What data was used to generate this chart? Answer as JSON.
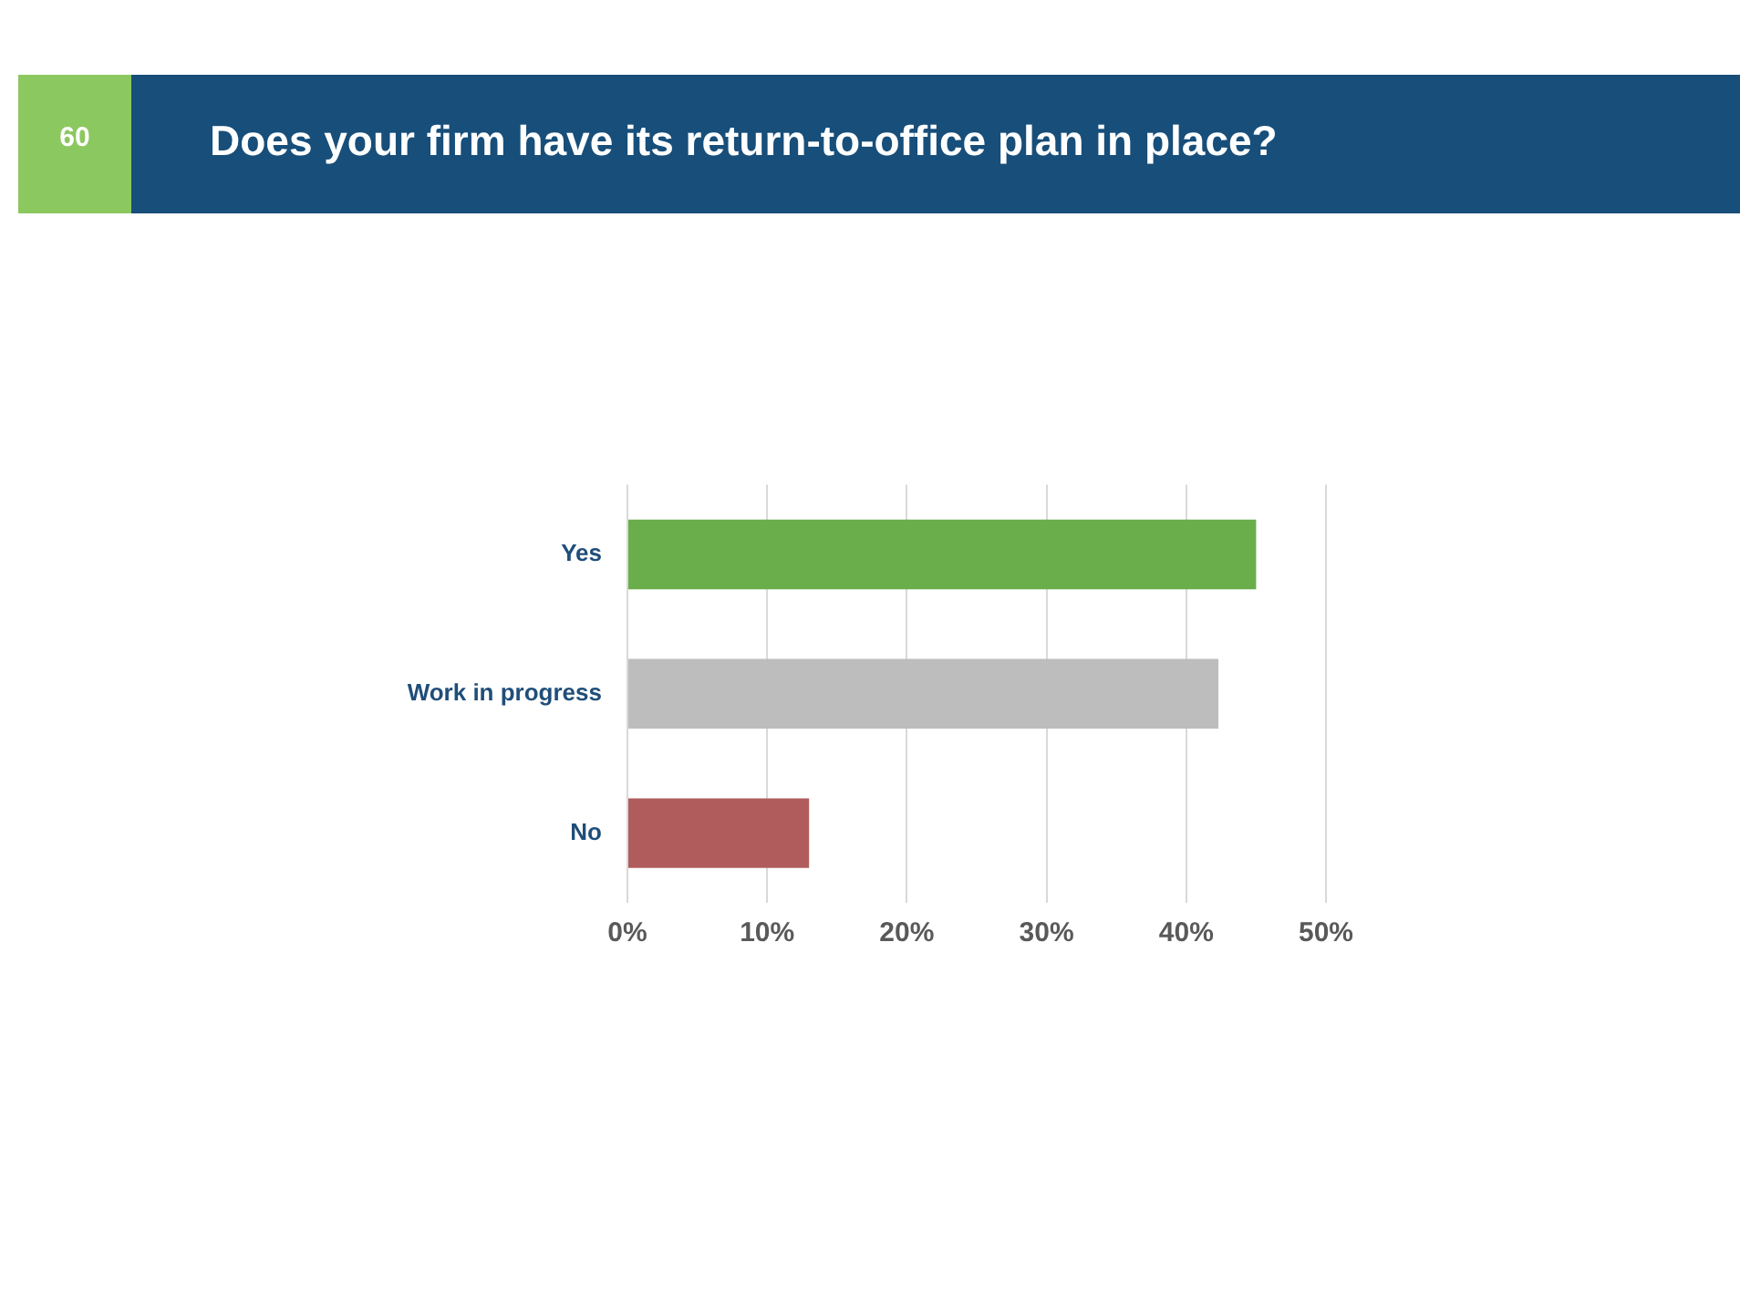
{
  "chart_data": {
    "type": "bar",
    "orientation": "horizontal",
    "title": "Does your firm have its return-to-office plan in place?",
    "annotations": [
      "60"
    ],
    "categories": [
      "Yes",
      "Work in progress",
      "No"
    ],
    "values": [
      45,
      42.3,
      13
    ],
    "colors": [
      "#6aae4c",
      "#bdbdbd",
      "#b05c5c"
    ],
    "xlim": [
      0,
      50
    ],
    "xticks": [
      {
        "value": 0,
        "label": "0%"
      },
      {
        "value": 10,
        "label": "10%"
      },
      {
        "value": 20,
        "label": "20%"
      },
      {
        "value": 30,
        "label": "30%"
      },
      {
        "value": 40,
        "label": "40%"
      },
      {
        "value": 50,
        "label": "50%"
      }
    ],
    "grid": "x",
    "legend": false
  }
}
